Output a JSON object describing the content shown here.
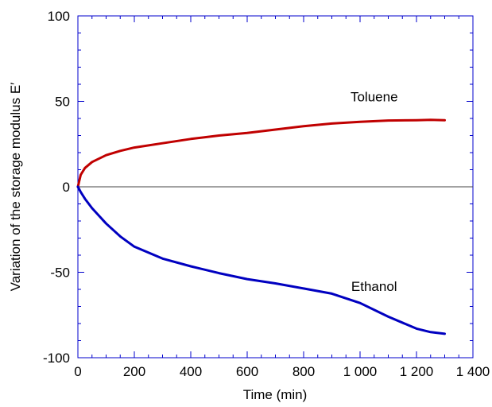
{
  "chart_data": {
    "type": "line",
    "title": "",
    "xlabel": "Time (min)",
    "ylabel": "Variation of the storage modulus E′",
    "xlim": [
      0,
      1400
    ],
    "ylim": [
      -100,
      100
    ],
    "x_ticks": [
      0,
      200,
      400,
      600,
      800,
      1000,
      1200,
      1400
    ],
    "x_tick_labels": [
      "0",
      "200",
      "400",
      "600",
      "800",
      "1 000",
      "1 200",
      "1 400"
    ],
    "y_ticks": [
      -100,
      -50,
      0,
      50,
      100
    ],
    "y_tick_labels": [
      "-100",
      "-50",
      "0",
      "50",
      "100"
    ],
    "grid": false,
    "zero_line": true,
    "series": [
      {
        "name": "Toluene",
        "color": "#c00000",
        "x": [
          0,
          10,
          25,
          50,
          100,
          150,
          200,
          300,
          400,
          500,
          600,
          700,
          800,
          900,
          1000,
          1100,
          1200,
          1250,
          1300
        ],
        "y": [
          0,
          7,
          11,
          14.5,
          18.5,
          21,
          23,
          25.5,
          28,
          30,
          31.5,
          33.5,
          35.5,
          37,
          38,
          38.8,
          39,
          39.2,
          39
        ]
      },
      {
        "name": "Ethanol",
        "color": "#0000c0",
        "x": [
          0,
          10,
          25,
          50,
          100,
          150,
          200,
          300,
          400,
          500,
          600,
          700,
          800,
          900,
          1000,
          1100,
          1200,
          1250,
          1300
        ],
        "y": [
          0,
          -3,
          -7,
          -12.5,
          -21.5,
          -29,
          -35,
          -42,
          -46.5,
          -50.5,
          -54,
          -56.5,
          -59.5,
          -62.5,
          -68,
          -76,
          -83,
          -85,
          -86
        ]
      }
    ],
    "annotations": [
      {
        "text": "Toluene",
        "x": 1050,
        "y": 50
      },
      {
        "text": "Ethanol",
        "x": 1050,
        "y": -61
      }
    ]
  }
}
